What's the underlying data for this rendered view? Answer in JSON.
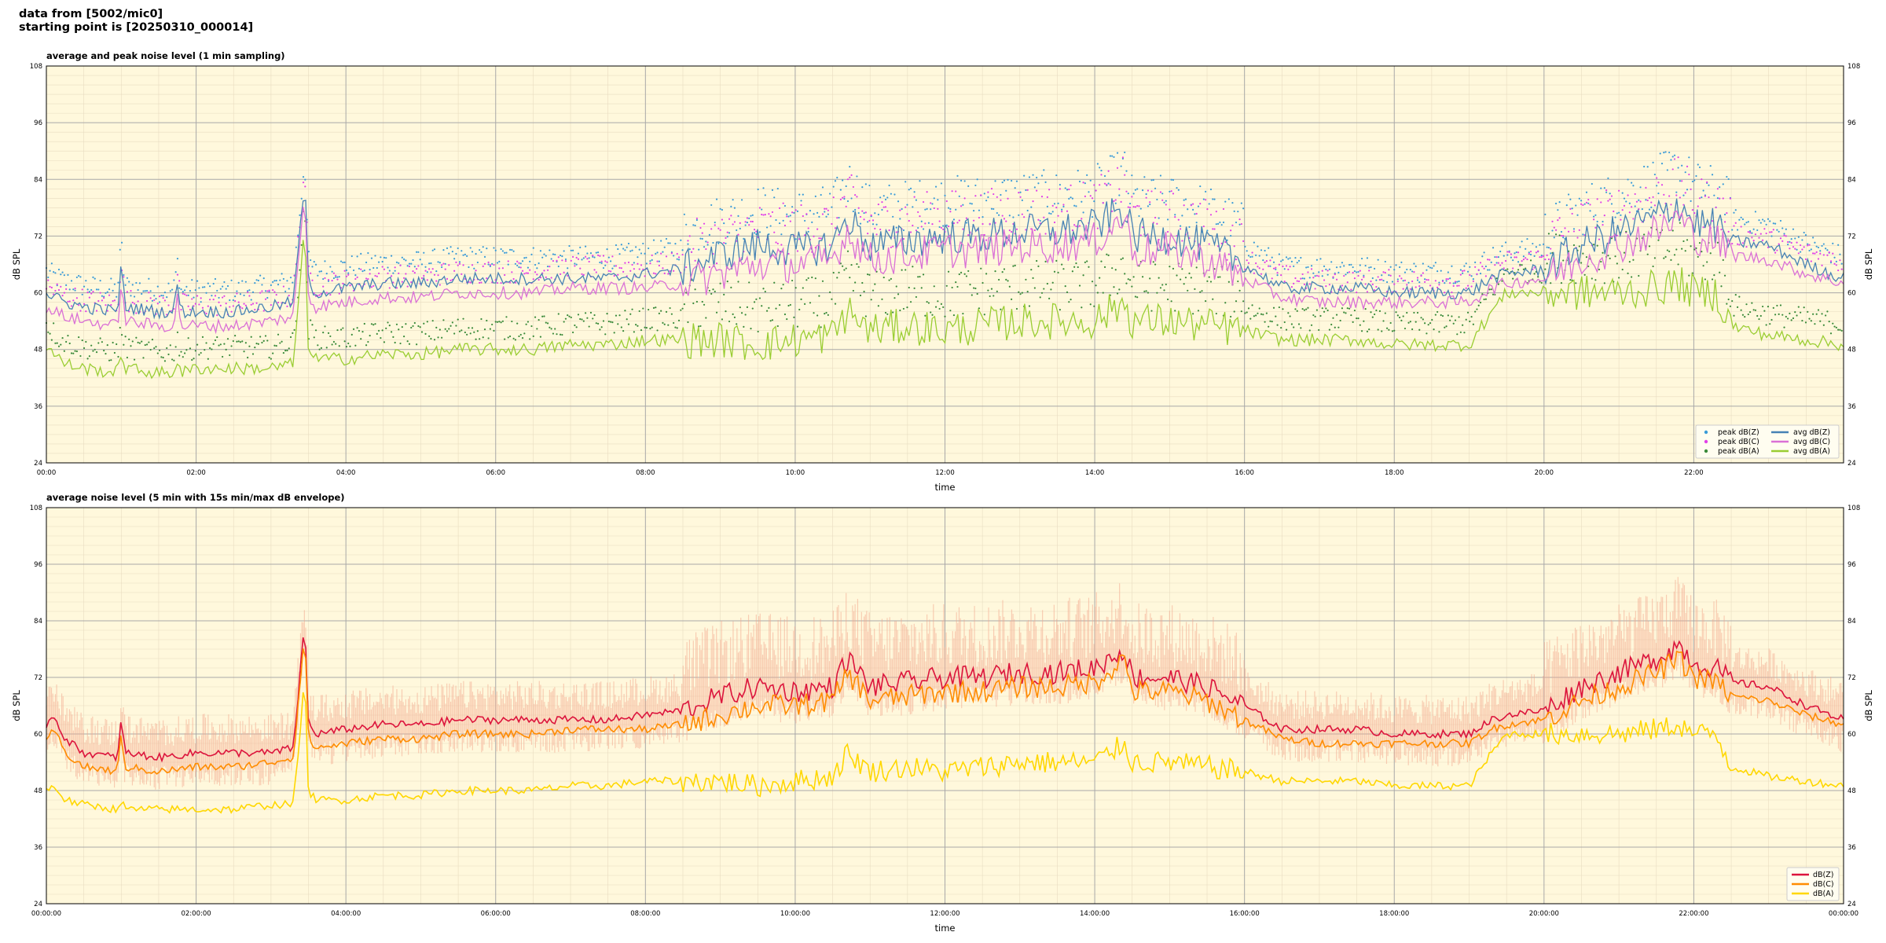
{
  "header": {
    "line1": "data from [5002/mic0]",
    "line2": "starting point is [20250310_000014]"
  },
  "chart_data": [
    {
      "type": "line",
      "title": "average and peak noise level (1 min sampling)",
      "xlabel": "time",
      "ylabel": "dB SPL",
      "ylim": [
        24,
        108
      ],
      "xlim_hours": [
        0,
        24
      ],
      "yticks": [
        24,
        36,
        48,
        60,
        72,
        84,
        96,
        108
      ],
      "xtick_labels": [
        "00:00",
        "02:00",
        "04:00",
        "06:00",
        "08:00",
        "10:00",
        "12:00",
        "14:00",
        "16:00",
        "18:00",
        "20:00",
        "22:00"
      ],
      "grid": true,
      "legend_position": "bottom-right",
      "legend_labels": [
        "peak dB(Z)",
        "peak dB(C)",
        "peak dB(A)",
        "avg dB(Z)",
        "avg dB(C)",
        "avg dB(A)"
      ],
      "colors": {
        "z": "#4682b4",
        "c": "#da70d6",
        "a": "#9acd32",
        "peakZ": "#3a9bd8",
        "peakC": "#e040e8",
        "peakA": "#3a8a3a"
      },
      "series": [
        {
          "name": "avg dB(Z)",
          "x_hours": [
            0,
            0.1,
            0.25,
            0.5,
            0.95,
            1.0,
            1.05,
            1.5,
            1.7,
            1.75,
            1.8,
            2.0,
            2.5,
            3.0,
            3.3,
            3.45,
            3.5,
            3.6,
            4.0,
            4.5,
            5.0,
            5.5,
            6.0,
            6.5,
            7.0,
            7.5,
            8.0,
            8.5,
            9.0,
            9.5,
            10.0,
            10.5,
            10.7,
            11.0,
            11.5,
            12.0,
            12.5,
            13.0,
            13.5,
            14.0,
            14.4,
            14.5,
            15.0,
            15.5,
            16.0,
            16.5,
            17.0,
            17.5,
            18.0,
            18.5,
            19.0,
            19.3,
            19.5,
            20.0,
            20.5,
            21.0,
            21.5,
            21.8,
            22.0,
            22.3,
            22.5,
            23.0,
            23.5,
            24.0
          ],
          "y": [
            60,
            59,
            58,
            57,
            56,
            66,
            57,
            56,
            56,
            62,
            56,
            56,
            56,
            57,
            58,
            84,
            62,
            60,
            61,
            62,
            62,
            63,
            63,
            63,
            63,
            63,
            64,
            65,
            68,
            70,
            69,
            70,
            76,
            70,
            71,
            72,
            72,
            73,
            73,
            74,
            78,
            72,
            72,
            70,
            66,
            61,
            61,
            61,
            60,
            60,
            60,
            63,
            64,
            65,
            70,
            73,
            76,
            79,
            75,
            74,
            71,
            70,
            66,
            63
          ]
        },
        {
          "name": "avg dB(C)",
          "x_hours": [
            0,
            0.1,
            0.25,
            0.5,
            0.95,
            1.0,
            1.05,
            1.5,
            1.7,
            1.75,
            1.8,
            2.0,
            2.5,
            3.0,
            3.3,
            3.45,
            3.5,
            3.6,
            4.0,
            4.5,
            5.0,
            5.5,
            6.0,
            6.5,
            7.0,
            7.5,
            8.0,
            8.5,
            9.0,
            9.5,
            10.0,
            10.5,
            10.7,
            11.0,
            11.5,
            12.0,
            12.5,
            13.0,
            13.5,
            14.0,
            14.4,
            14.5,
            15.0,
            15.5,
            16.0,
            16.5,
            17.0,
            17.5,
            18.0,
            18.5,
            19.0,
            19.3,
            19.5,
            20.0,
            20.5,
            21.0,
            21.5,
            21.8,
            22.0,
            22.3,
            22.5,
            23.0,
            23.5,
            24.0
          ],
          "y": [
            57,
            56,
            55,
            54,
            53,
            63,
            54,
            53,
            53,
            59,
            53,
            53,
            53,
            54,
            55,
            82,
            59,
            57,
            58,
            59,
            59,
            60,
            60,
            60,
            61,
            61,
            61,
            62,
            64,
            66,
            66,
            67,
            73,
            67,
            68,
            69,
            69,
            70,
            70,
            71,
            76,
            69,
            69,
            67,
            63,
            59,
            58,
            58,
            58,
            58,
            58,
            61,
            62,
            63,
            67,
            70,
            73,
            76,
            72,
            71,
            68,
            67,
            64,
            62
          ]
        },
        {
          "name": "avg dB(A)",
          "x_hours": [
            0,
            0.1,
            0.25,
            0.5,
            0.95,
            1.0,
            1.05,
            1.5,
            1.7,
            1.75,
            1.8,
            2.0,
            2.5,
            3.0,
            3.3,
            3.45,
            3.5,
            3.6,
            4.0,
            4.5,
            5.0,
            5.5,
            6.0,
            6.5,
            7.0,
            7.5,
            8.0,
            8.5,
            9.0,
            9.5,
            10.0,
            10.5,
            10.7,
            11.0,
            11.5,
            12.0,
            12.5,
            13.0,
            13.5,
            14.0,
            14.4,
            14.5,
            15.0,
            15.5,
            16.0,
            16.5,
            17.0,
            17.5,
            18.0,
            18.5,
            19.0,
            19.3,
            19.5,
            20.0,
            20.5,
            21.0,
            21.5,
            21.8,
            22.0,
            22.3,
            22.5,
            23.0,
            23.5,
            24.0
          ],
          "y": [
            49,
            47,
            45,
            44,
            43,
            48,
            44,
            43,
            43,
            46,
            43,
            44,
            44,
            44,
            45,
            74,
            48,
            46,
            46,
            47,
            47,
            48,
            48,
            48,
            49,
            49,
            50,
            50,
            50,
            49,
            50,
            51,
            56,
            52,
            53,
            52,
            53,
            54,
            54,
            54,
            58,
            54,
            54,
            53,
            52,
            50,
            50,
            50,
            49,
            49,
            49,
            56,
            60,
            60,
            60,
            60,
            61,
            62,
            60,
            60,
            53,
            51,
            50,
            49
          ]
        }
      ]
    },
    {
      "type": "line",
      "title": "average noise level (5 min with 15s min/max dB envelope)",
      "xlabel": "time",
      "ylabel": "dB SPL",
      "ylim": [
        24,
        108
      ],
      "xlim_hours": [
        0,
        24
      ],
      "yticks": [
        24,
        36,
        48,
        60,
        72,
        84,
        96,
        108
      ],
      "xtick_labels": [
        "00:00:00",
        "02:00:00",
        "04:00:00",
        "06:00:00",
        "08:00:00",
        "10:00:00",
        "12:00:00",
        "14:00:00",
        "16:00:00",
        "18:00:00",
        "20:00:00",
        "22:00:00",
        "00:00:00"
      ],
      "grid": true,
      "legend_position": "bottom-right",
      "legend_labels": [
        "dB(Z)",
        "dB(C)",
        "dB(A)"
      ],
      "colors": {
        "z": "#dc143c",
        "c": "#ff8c00",
        "a": "#ffd700",
        "envelope": "#f4a98e"
      },
      "series": [
        {
          "name": "dB(Z)",
          "x_hours": [
            0,
            0.1,
            0.25,
            0.5,
            0.95,
            1.0,
            1.05,
            1.5,
            2.0,
            2.5,
            3.0,
            3.3,
            3.45,
            3.5,
            3.6,
            4.0,
            4.5,
            5.0,
            5.5,
            6.0,
            6.5,
            7.0,
            7.5,
            8.0,
            8.5,
            9.0,
            9.5,
            10.0,
            10.5,
            10.7,
            11.0,
            11.5,
            12.0,
            12.5,
            13.0,
            13.5,
            14.0,
            14.4,
            14.5,
            15.0,
            15.5,
            16.0,
            16.5,
            17.0,
            17.5,
            18.0,
            18.5,
            19.0,
            19.3,
            19.5,
            20.0,
            20.5,
            21.0,
            21.5,
            21.8,
            22.0,
            22.3,
            22.5,
            23.0,
            23.5,
            24.0
          ],
          "y": [
            62,
            64,
            59,
            56,
            55,
            63,
            56,
            55,
            56,
            56,
            56,
            57,
            84,
            62,
            60,
            61,
            62,
            62,
            63,
            63,
            63,
            63,
            63,
            64,
            65,
            68,
            70,
            69,
            70,
            76,
            70,
            71,
            72,
            72,
            73,
            73,
            74,
            78,
            72,
            72,
            70,
            66,
            61,
            61,
            61,
            60,
            60,
            60,
            63,
            64,
            65,
            70,
            73,
            76,
            79,
            75,
            74,
            71,
            70,
            66,
            63
          ]
        },
        {
          "name": "dB(C)",
          "x_hours": [
            0,
            0.1,
            0.25,
            0.5,
            0.95,
            1.0,
            1.05,
            1.5,
            2.0,
            2.5,
            3.0,
            3.3,
            3.45,
            3.5,
            3.6,
            4.0,
            4.5,
            5.0,
            5.5,
            6.0,
            6.5,
            7.0,
            7.5,
            8.0,
            8.5,
            9.0,
            9.5,
            10.0,
            10.5,
            10.7,
            11.0,
            11.5,
            12.0,
            12.5,
            13.0,
            13.5,
            14.0,
            14.4,
            14.5,
            15.0,
            15.5,
            16.0,
            16.5,
            17.0,
            17.5,
            18.0,
            18.5,
            19.0,
            19.3,
            19.5,
            20.0,
            20.5,
            21.0,
            21.5,
            21.8,
            22.0,
            22.3,
            22.5,
            23.0,
            23.5,
            24.0
          ],
          "y": [
            58,
            61,
            56,
            53,
            52,
            60,
            53,
            52,
            53,
            53,
            54,
            55,
            82,
            59,
            57,
            58,
            59,
            59,
            60,
            60,
            60,
            61,
            61,
            61,
            62,
            64,
            66,
            66,
            67,
            73,
            67,
            68,
            69,
            69,
            70,
            70,
            71,
            76,
            69,
            69,
            67,
            63,
            59,
            58,
            58,
            58,
            58,
            58,
            61,
            62,
            63,
            67,
            70,
            73,
            76,
            72,
            71,
            68,
            67,
            64,
            62
          ]
        },
        {
          "name": "dB(A)",
          "x_hours": [
            0,
            0.1,
            0.25,
            0.5,
            0.95,
            1.0,
            1.05,
            1.5,
            2.0,
            2.5,
            3.0,
            3.3,
            3.45,
            3.5,
            3.6,
            4.0,
            4.5,
            5.0,
            5.5,
            6.0,
            6.5,
            7.0,
            7.5,
            8.0,
            8.5,
            9.0,
            9.5,
            10.0,
            10.5,
            10.7,
            11.0,
            11.5,
            12.0,
            12.5,
            13.0,
            13.5,
            14.0,
            14.4,
            14.5,
            15.0,
            15.5,
            16.0,
            16.5,
            17.0,
            17.5,
            18.0,
            18.5,
            19.0,
            19.3,
            19.5,
            20.0,
            20.5,
            21.0,
            21.5,
            21.8,
            22.0,
            22.3,
            22.5,
            23.0,
            23.5,
            24.0
          ],
          "y": [
            48,
            49,
            46,
            45,
            44,
            46,
            44,
            44,
            44,
            44,
            45,
            45,
            72,
            48,
            46,
            46,
            47,
            47,
            48,
            48,
            48,
            49,
            49,
            50,
            50,
            50,
            49,
            50,
            51,
            56,
            52,
            53,
            52,
            53,
            54,
            54,
            54,
            58,
            54,
            54,
            53,
            52,
            50,
            50,
            50,
            49,
            49,
            49,
            56,
            60,
            60,
            60,
            60,
            61,
            62,
            60,
            60,
            53,
            51,
            50,
            49
          ]
        }
      ]
    }
  ]
}
